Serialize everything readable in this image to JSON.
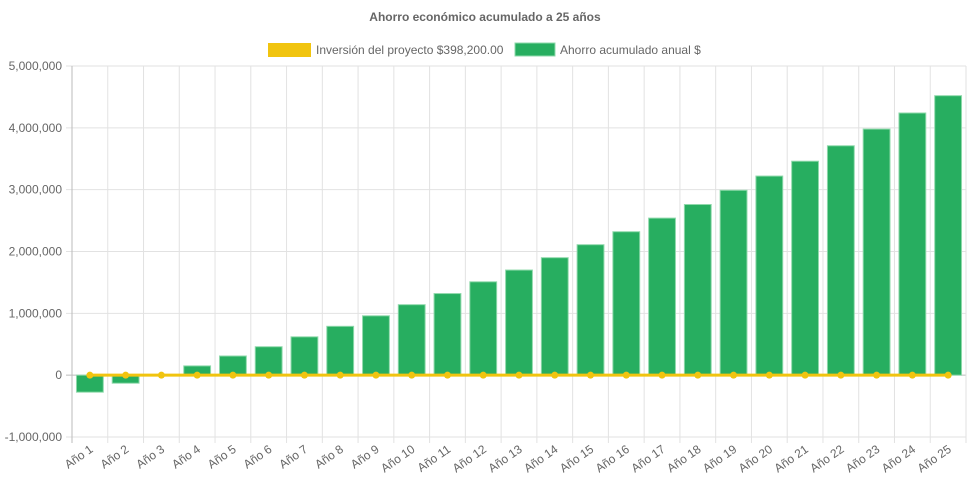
{
  "chart_data": {
    "type": "bar",
    "title": "Ahorro económico acumulado a 25 años",
    "categories": [
      "Año 1",
      "Año 2",
      "Año 3",
      "Año 4",
      "Año 5",
      "Año 6",
      "Año 7",
      "Año 8",
      "Año 9",
      "Año 10",
      "Año 11",
      "Año 12",
      "Año 13",
      "Año 14",
      "Año 15",
      "Año 16",
      "Año 17",
      "Año 18",
      "Año 19",
      "Año 20",
      "Año 21",
      "Año 22",
      "Año 23",
      "Año 24",
      "Año 25"
    ],
    "series": [
      {
        "name": "Inversión del proyecto $398,200.00",
        "type": "line",
        "color": "#f1c40f",
        "values": [
          0,
          0,
          0,
          0,
          0,
          0,
          0,
          0,
          0,
          0,
          0,
          0,
          0,
          0,
          0,
          0,
          0,
          0,
          0,
          0,
          0,
          0,
          0,
          0,
          0
        ]
      },
      {
        "name": "Ahorro acumulado anual $",
        "type": "bar",
        "color": "#27ae60",
        "values": [
          -275000,
          -130000,
          10000,
          150000,
          310000,
          460000,
          620000,
          790000,
          960000,
          1140000,
          1320000,
          1510000,
          1700000,
          1900000,
          2110000,
          2320000,
          2540000,
          2760000,
          2990000,
          3220000,
          3460000,
          3710000,
          3980000,
          4240000,
          4520000
        ]
      }
    ],
    "ylim": [
      -1000000,
      5000000
    ],
    "yticks": [
      "5,000,000",
      "4,000,000",
      "3,000,000",
      "2,000,000",
      "1,000,000",
      "0",
      "-1,000,000"
    ],
    "ytick_values": [
      5000000,
      4000000,
      3000000,
      2000000,
      1000000,
      0,
      -1000000
    ],
    "grid": true,
    "legend": "top"
  }
}
